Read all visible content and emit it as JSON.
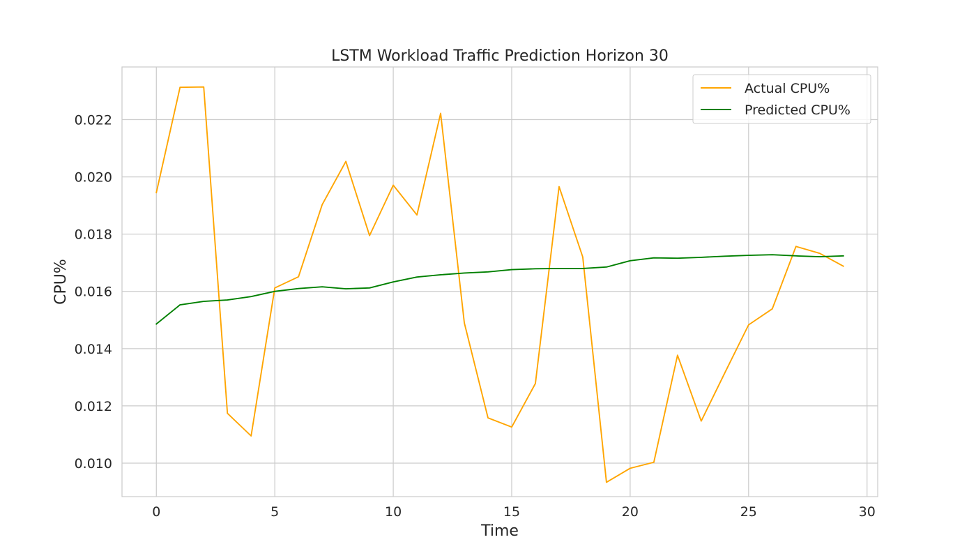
{
  "chart_data": {
    "type": "line",
    "title": "LSTM Workload Traffic Prediction Horizon 30",
    "xlabel": "Time",
    "ylabel": "CPU%",
    "xlim": [
      -1.45,
      30.45
    ],
    "ylim": [
      0.00883,
      0.02384
    ],
    "xticks": [
      0,
      5,
      10,
      15,
      20,
      25,
      30
    ],
    "xtick_labels": [
      "0",
      "5",
      "10",
      "15",
      "20",
      "25",
      "30"
    ],
    "yticks": [
      0.01,
      0.012,
      0.014,
      0.016,
      0.018,
      0.02,
      0.022
    ],
    "ytick_labels": [
      "0.010",
      "0.012",
      "0.014",
      "0.016",
      "0.018",
      "0.020",
      "0.022"
    ],
    "grid": true,
    "legend_position": "top-right",
    "x": [
      0,
      1,
      2,
      3,
      4,
      5,
      6,
      7,
      8,
      9,
      10,
      11,
      12,
      13,
      14,
      15,
      16,
      17,
      18,
      19,
      20,
      21,
      22,
      23,
      24,
      25,
      26,
      27,
      28,
      29
    ],
    "series": [
      {
        "name": "Actual CPU%",
        "color": "#ffa500",
        "values": [
          0.01945,
          0.02313,
          0.02314,
          0.01174,
          0.01095,
          0.01612,
          0.01651,
          0.01903,
          0.02054,
          0.01795,
          0.01971,
          0.01867,
          0.02222,
          0.0149,
          0.01158,
          0.01126,
          0.01278,
          0.01966,
          0.0172,
          0.00933,
          0.00982,
          0.01003,
          0.01377,
          0.01147,
          0.01316,
          0.01483,
          0.01539,
          0.01757,
          0.01733,
          0.01688
        ]
      },
      {
        "name": "Predicted CPU%",
        "color": "#008000",
        "values": [
          0.01486,
          0.01553,
          0.01565,
          0.0157,
          0.01582,
          0.016,
          0.0161,
          0.01616,
          0.01609,
          0.01612,
          0.01633,
          0.0165,
          0.01658,
          0.01664,
          0.01668,
          0.01676,
          0.01679,
          0.0168,
          0.0168,
          0.01685,
          0.01707,
          0.01717,
          0.01716,
          0.01719,
          0.01723,
          0.01726,
          0.01728,
          0.01724,
          0.01721,
          0.01724
        ]
      }
    ]
  }
}
